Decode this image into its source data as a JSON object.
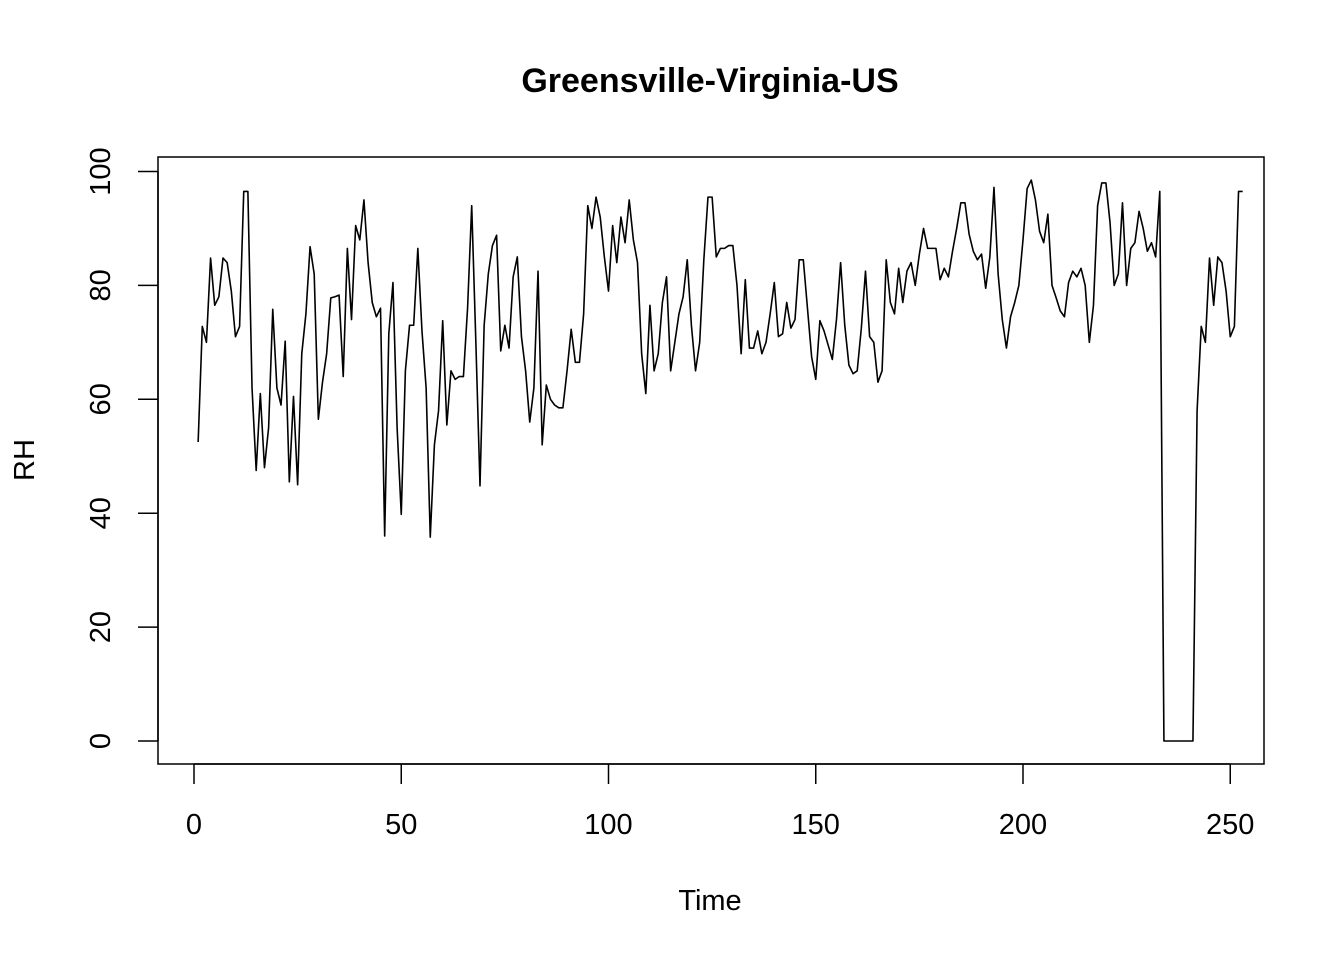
{
  "chart_data": {
    "type": "line",
    "title": "Greensville-Virginia-US",
    "xlabel": "Time",
    "ylabel": "RH",
    "xlim": [
      1,
      248
    ],
    "ylim": [
      0,
      100
    ],
    "x_ticks": [
      0,
      50,
      100,
      150,
      200,
      250
    ],
    "y_ticks": [
      0,
      20,
      40,
      60,
      80,
      100
    ],
    "grid": false,
    "line_color": "#000000",
    "series": [
      {
        "values": [
          52.5,
          72.8,
          70,
          84.8,
          76.5,
          78,
          84.8,
          84,
          79,
          71,
          72.8,
          96.5,
          96.5,
          62,
          47.5,
          61,
          48,
          55,
          75.8,
          62,
          59,
          70.2,
          45.5,
          60.5,
          45,
          68,
          75,
          86.8,
          82,
          56.5,
          63,
          68,
          77.8,
          78,
          78.3,
          64,
          86.5,
          74,
          90.5,
          88,
          95,
          84,
          77,
          74.5,
          76,
          36,
          71.5,
          80.5,
          55,
          39.8,
          65,
          73,
          73,
          86.5,
          72,
          62,
          35.8,
          52,
          58,
          73.8,
          55.5,
          65,
          63.5,
          64,
          64,
          76,
          94,
          70,
          44.8,
          73,
          82,
          87,
          88.8,
          68.5,
          73,
          69,
          81.5,
          85,
          71,
          65,
          56,
          62,
          82.5,
          52,
          62.5,
          60,
          59,
          58.5,
          58.5,
          65,
          72.3,
          66.5,
          66.5,
          75,
          94,
          90,
          95.5,
          92,
          85,
          79,
          90.5,
          84,
          92,
          87.5,
          95,
          88,
          84,
          68,
          61,
          76.5,
          65,
          68,
          77,
          81.5,
          65,
          70,
          75,
          78,
          84.5,
          73,
          65,
          70,
          84.5,
          95.5,
          95.5,
          85,
          86.5,
          86.5,
          87,
          87,
          80,
          68,
          81,
          69,
          69,
          72,
          68,
          70,
          75,
          80.5,
          71,
          71.5,
          77,
          72.5,
          74,
          84.5,
          84.5,
          76,
          67.5,
          63.5,
          73.8,
          72,
          69.5,
          67,
          74,
          84,
          73,
          66,
          64.5,
          65,
          72.5,
          82.5,
          71,
          70,
          63,
          65,
          84.5,
          77,
          75,
          83,
          77,
          82.5,
          84,
          80,
          85.5,
          90,
          86.5,
          86.5,
          86.5,
          81,
          83,
          81.5,
          86,
          90,
          94.5,
          94.5,
          89,
          86,
          84.5,
          85.5,
          79.5,
          85,
          97.2,
          82,
          74,
          69,
          74.5,
          77,
          80,
          88,
          97,
          98.5,
          95,
          89.5,
          87.5,
          92.5,
          80,
          77.8,
          75.5,
          74.5,
          80.5,
          82.5,
          81.5,
          83,
          80,
          70,
          76.5,
          94,
          98,
          98,
          91,
          80,
          82,
          94.5,
          80,
          86.5,
          87.5,
          93,
          90,
          86,
          87.5,
          85,
          96.5,
          0,
          0,
          0,
          0,
          0,
          0,
          0,
          0,
          58,
          72.8,
          70,
          84.8,
          76.5,
          85,
          84,
          79,
          71,
          72.8,
          96.5,
          96.5
        ]
      }
    ]
  }
}
